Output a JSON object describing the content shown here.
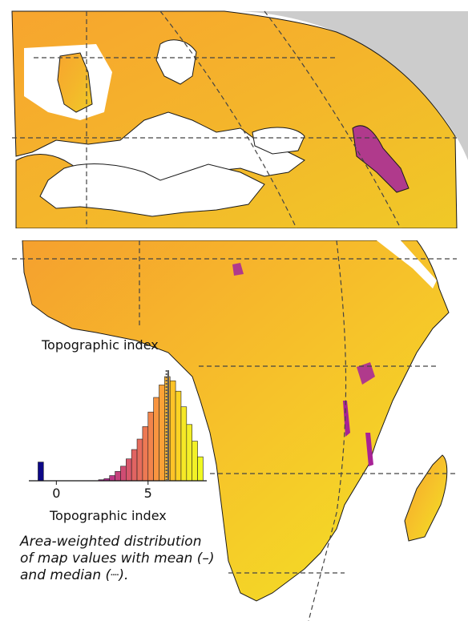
{
  "map": {
    "colormap": "plasma",
    "land_fill_low": "#c93d8a",
    "land_fill_mid": "#f59a2f",
    "land_fill_high": "#f5e81f",
    "ocean_color": "#ffffff",
    "out_of_globe_color": "#cccccc",
    "border_color": "#1a1a1a",
    "graticule_style": "dashed"
  },
  "inset": {
    "title": "Topographic index",
    "xlabel": "Topographic index",
    "caption": "Area-weighted distribution\nof map values with mean (–)\nand median (┈).",
    "xtick_labels": [
      "0",
      "5"
    ]
  },
  "chart_data": {
    "type": "bar",
    "title": "Topographic index",
    "xlabel": "Topographic index",
    "ylabel": "",
    "xticks": [
      0,
      5
    ],
    "bins": [
      {
        "x0": -1.0,
        "x1": -0.7,
        "value": 0.18,
        "color": "#0d0887"
      },
      {
        "x0": 2.3,
        "x1": 2.6,
        "value": 0.01,
        "color": "#a82296"
      },
      {
        "x0": 2.6,
        "x1": 2.9,
        "value": 0.02,
        "color": "#b12a90"
      },
      {
        "x0": 2.9,
        "x1": 3.2,
        "value": 0.05,
        "color": "#bd3786"
      },
      {
        "x0": 3.2,
        "x1": 3.5,
        "value": 0.09,
        "color": "#c6417d"
      },
      {
        "x0": 3.5,
        "x1": 3.8,
        "value": 0.14,
        "color": "#cf4c73"
      },
      {
        "x0": 3.8,
        "x1": 4.1,
        "value": 0.21,
        "color": "#d8576b"
      },
      {
        "x0": 4.1,
        "x1": 4.4,
        "value": 0.3,
        "color": "#e16462"
      },
      {
        "x0": 4.4,
        "x1": 4.7,
        "value": 0.4,
        "color": "#e66c5c"
      },
      {
        "x0": 4.7,
        "x1": 5.0,
        "value": 0.52,
        "color": "#ed7953"
      },
      {
        "x0": 5.0,
        "x1": 5.3,
        "value": 0.66,
        "color": "#f2844b"
      },
      {
        "x0": 5.3,
        "x1": 5.6,
        "value": 0.8,
        "color": "#f89540"
      },
      {
        "x0": 5.6,
        "x1": 5.9,
        "value": 0.92,
        "color": "#fba238"
      },
      {
        "x0": 5.9,
        "x1": 6.2,
        "value": 1.0,
        "color": "#fdb42f"
      },
      {
        "x0": 6.2,
        "x1": 6.5,
        "value": 0.96,
        "color": "#fdc328"
      },
      {
        "x0": 6.5,
        "x1": 6.8,
        "value": 0.86,
        "color": "#fbd324"
      },
      {
        "x0": 6.8,
        "x1": 7.1,
        "value": 0.71,
        "color": "#f6e826"
      },
      {
        "x0": 7.1,
        "x1": 7.4,
        "value": 0.54,
        "color": "#f3ee27"
      },
      {
        "x0": 7.4,
        "x1": 7.7,
        "value": 0.38,
        "color": "#f2f126"
      },
      {
        "x0": 7.7,
        "x1": 8.0,
        "value": 0.23,
        "color": "#f0f921"
      }
    ],
    "xlim": [
      -1.5,
      8.2
    ],
    "ylim": [
      0,
      1.0
    ],
    "mean": 6.1,
    "median": 6.0,
    "grid": false
  }
}
